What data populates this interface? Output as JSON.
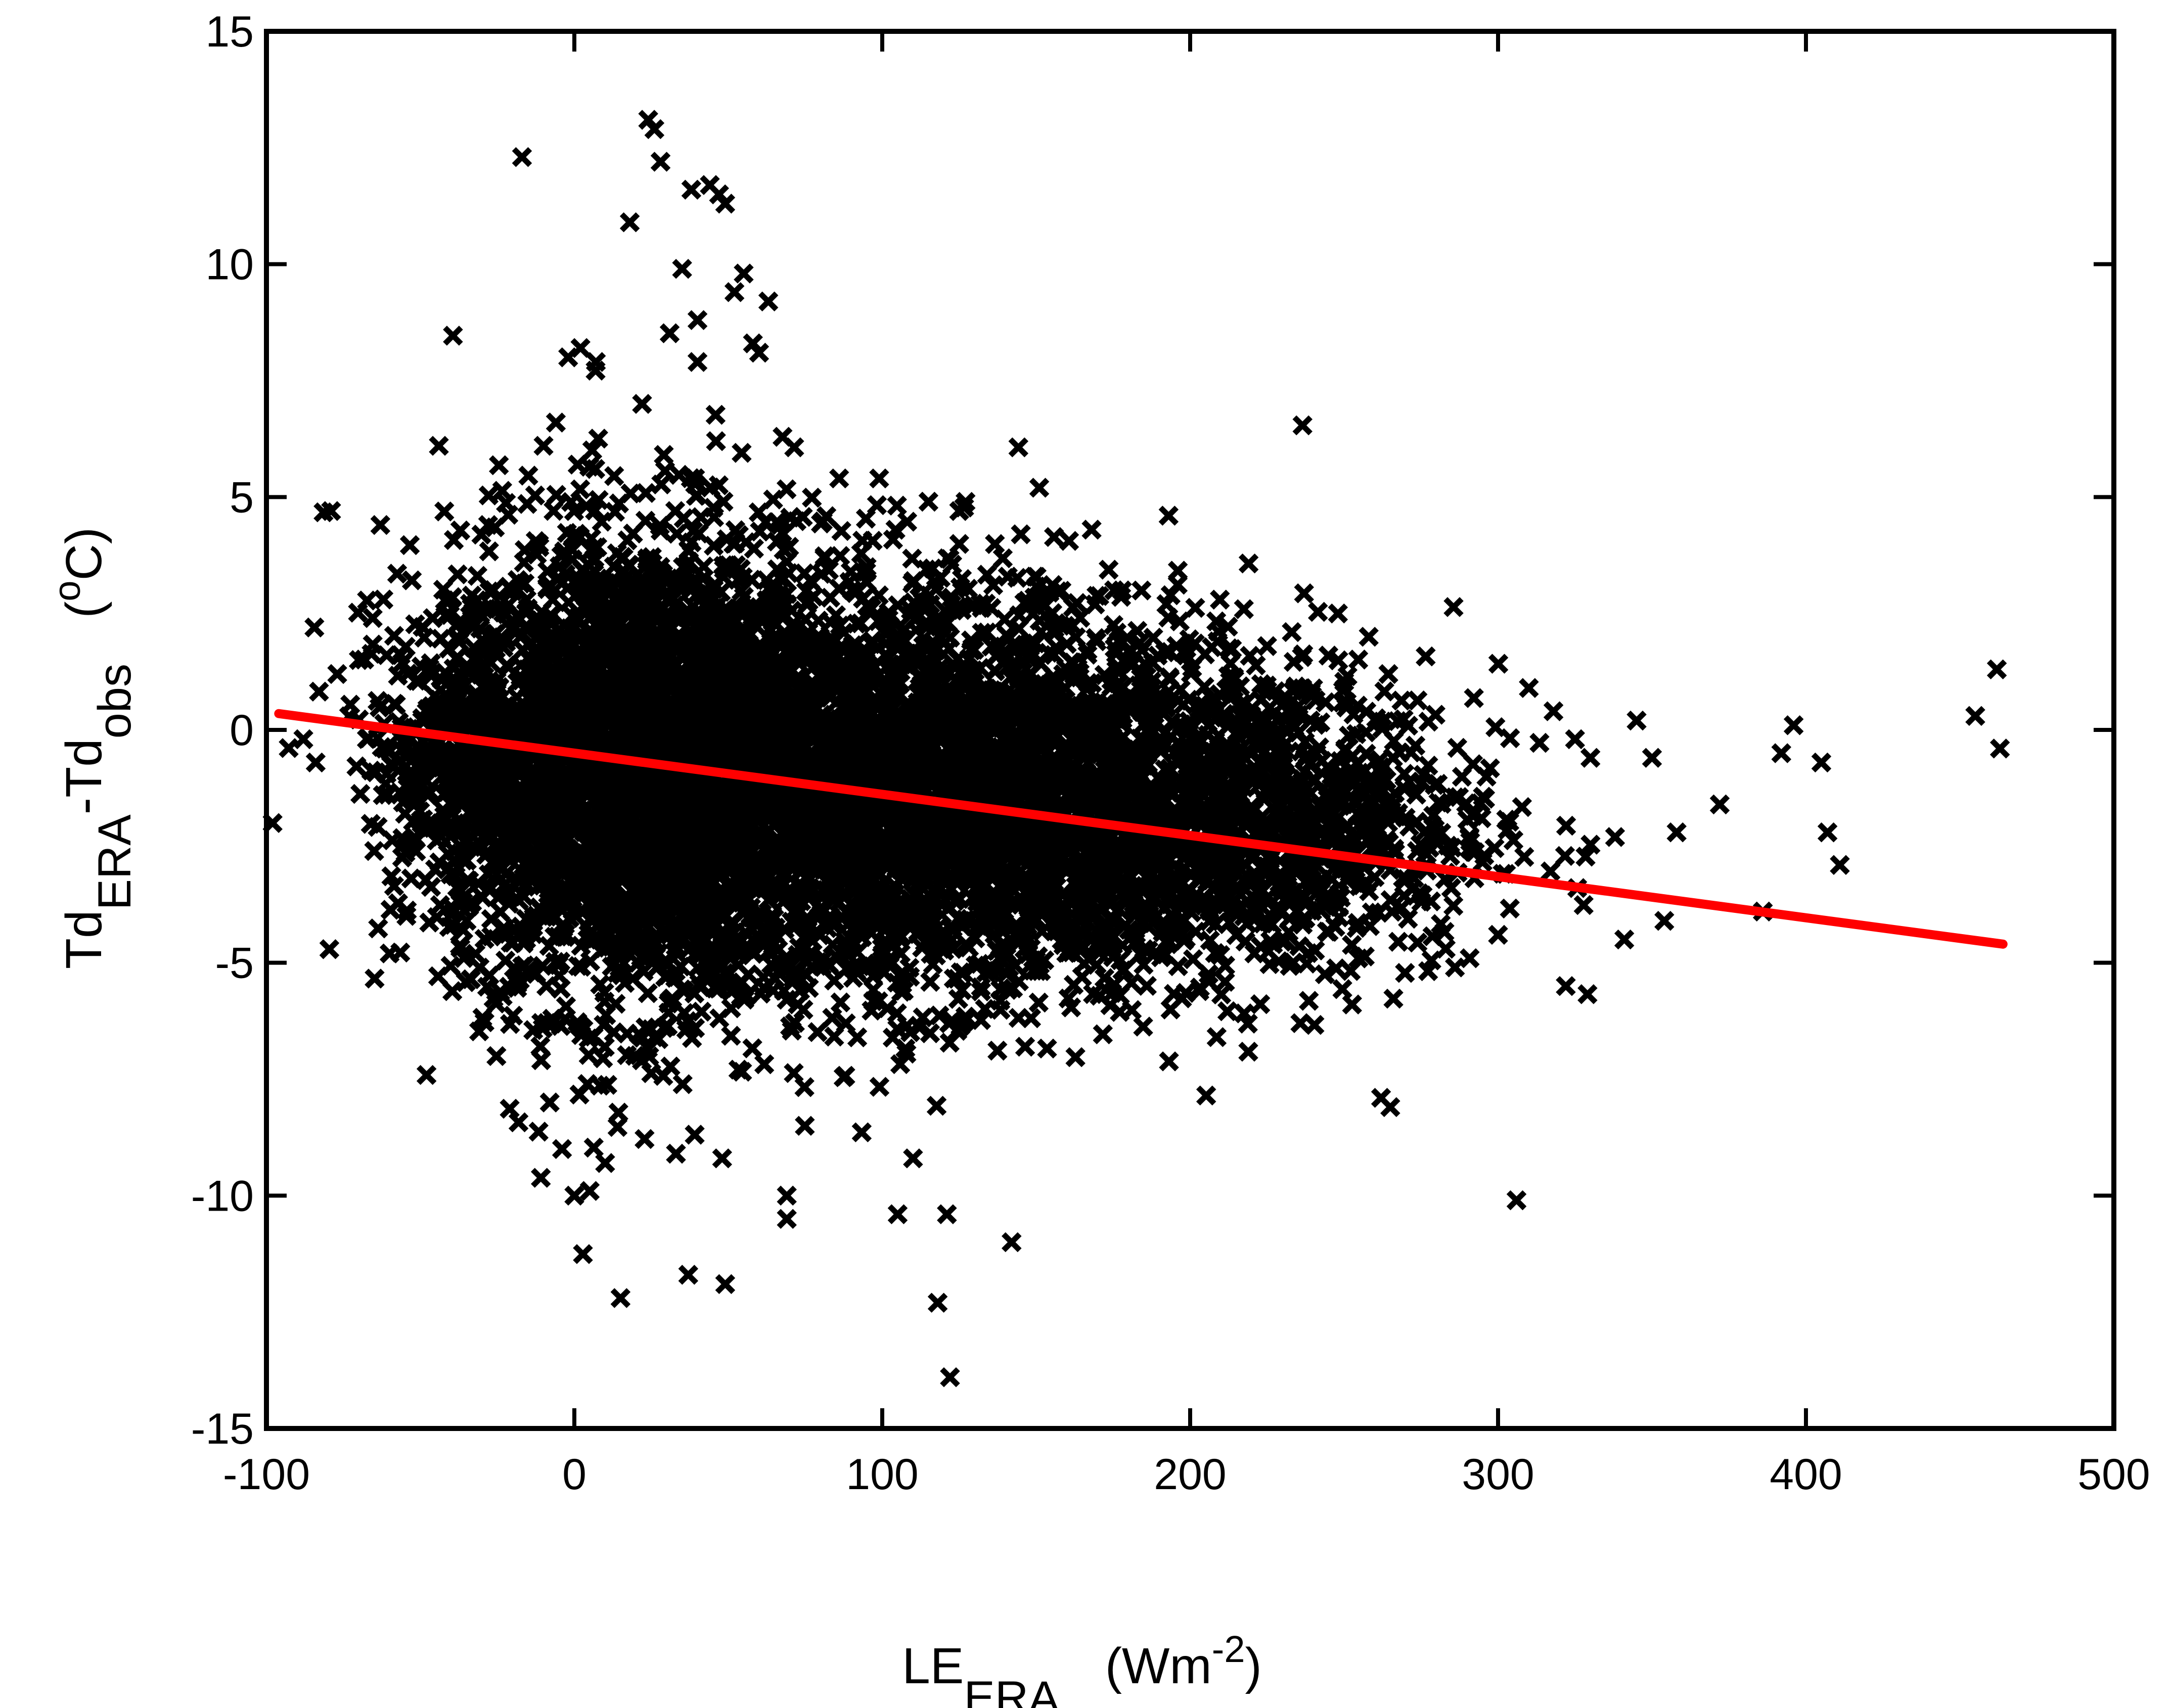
{
  "chart_data": {
    "type": "scatter",
    "xlabel": {
      "main": "LE",
      "sub": "ERA",
      "unit_open": "(Wm",
      "unit_sup": "-2",
      "unit_close": ")"
    },
    "ylabel": {
      "part1": "Td",
      "sub1": "ERA",
      "part2": "-Td",
      "sub2": "obs",
      "unit_open": "(",
      "unit_sup": "o",
      "unit_close": "C)"
    },
    "xlim": [
      -100,
      500
    ],
    "ylim": [
      -15,
      15
    ],
    "xticks": [
      -100,
      0,
      100,
      200,
      300,
      400,
      500
    ],
    "yticks": [
      -15,
      -10,
      -5,
      0,
      5,
      10,
      15
    ],
    "grid": false,
    "marker": "x",
    "marker_color": "#000000",
    "fit_line": {
      "color": "#ff0000",
      "x": [
        -96,
        464
      ],
      "y": [
        0.35,
        -4.6
      ]
    },
    "dense_cloud": {
      "description_free": true,
      "centers": [
        {
          "x": 20,
          "y": -0.8,
          "sx": 30,
          "sy": 2.6,
          "n": 2600
        },
        {
          "x": 90,
          "y": -1.2,
          "sx": 45,
          "sy": 2.2,
          "n": 2600
        },
        {
          "x": 160,
          "y": -1.6,
          "sx": 40,
          "sy": 1.9,
          "n": 1500
        },
        {
          "x": 230,
          "y": -2.0,
          "sx": 35,
          "sy": 1.7,
          "n": 700
        },
        {
          "x": -30,
          "y": -0.6,
          "sx": 18,
          "sy": 1.6,
          "n": 500
        }
      ]
    },
    "points": [
      {
        "x": -98,
        "y": -2.0
      },
      {
        "x": -88,
        "y": -0.2
      },
      {
        "x": -84,
        "y": -0.7
      },
      {
        "x": -79,
        "y": 4.7
      },
      {
        "x": -77,
        "y": 1.2
      },
      {
        "x": -70,
        "y": 1.5
      },
      {
        "x": -65,
        "y": -2.6
      },
      {
        "x": -63,
        "y": 4.4
      },
      {
        "x": -62,
        "y": 2.8
      },
      {
        "x": -60,
        "y": -4.8
      },
      {
        "x": -55,
        "y": -1.8
      },
      {
        "x": -46,
        "y": 2.4
      },
      {
        "x": -44,
        "y": 6.1
      },
      {
        "x": -40,
        "y": -3.8
      },
      {
        "x": -35,
        "y": -4.1
      },
      {
        "x": -28,
        "y": 4.4
      },
      {
        "x": -17,
        "y": 12.3
      },
      {
        "x": -10,
        "y": 6.1
      },
      {
        "x": -6,
        "y": 6.6
      },
      {
        "x": -2,
        "y": 8.0
      },
      {
        "x": 2,
        "y": 8.2
      },
      {
        "x": 7,
        "y": 7.9
      },
      {
        "x": -8,
        "y": -8.0
      },
      {
        "x": -4,
        "y": -9.0
      },
      {
        "x": 0,
        "y": -10.0
      },
      {
        "x": 5,
        "y": -9.9
      },
      {
        "x": 10,
        "y": -9.3
      },
      {
        "x": 15,
        "y": -12.2
      },
      {
        "x": 18,
        "y": 10.9
      },
      {
        "x": 22,
        "y": 7.0
      },
      {
        "x": 24,
        "y": 13.1
      },
      {
        "x": 26,
        "y": 12.9
      },
      {
        "x": 28,
        "y": 12.2
      },
      {
        "x": 35,
        "y": 9.9
      },
      {
        "x": 38,
        "y": 11.6
      },
      {
        "x": 40,
        "y": 8.8
      },
      {
        "x": 44,
        "y": 11.7
      },
      {
        "x": 47,
        "y": 11.5
      },
      {
        "x": 49,
        "y": 11.3
      },
      {
        "x": 52,
        "y": 9.4
      },
      {
        "x": 55,
        "y": 9.8
      },
      {
        "x": 58,
        "y": 8.3
      },
      {
        "x": 60,
        "y": 8.1
      },
      {
        "x": 63,
        "y": 9.2
      },
      {
        "x": 40,
        "y": 7.9
      },
      {
        "x": 46,
        "y": 6.2
      },
      {
        "x": 37,
        "y": -11.7
      },
      {
        "x": 49,
        "y": -11.9
      },
      {
        "x": 33,
        "y": -9.1
      },
      {
        "x": 48,
        "y": -9.2
      },
      {
        "x": 69,
        "y": -10.0
      },
      {
        "x": 69,
        "y": -10.5
      },
      {
        "x": 86,
        "y": 5.4
      },
      {
        "x": 99,
        "y": 5.4
      },
      {
        "x": 110,
        "y": -9.2
      },
      {
        "x": 105,
        "y": -10.4
      },
      {
        "x": 118,
        "y": -12.3
      },
      {
        "x": 121,
        "y": -10.4
      },
      {
        "x": 122,
        "y": -13.9
      },
      {
        "x": 142,
        "y": -11.0
      },
      {
        "x": 115,
        "y": 4.9
      },
      {
        "x": 125,
        "y": 4.7
      },
      {
        "x": 145,
        "y": 4.2
      },
      {
        "x": 151,
        "y": 5.2
      },
      {
        "x": 168,
        "y": 4.3
      },
      {
        "x": 193,
        "y": 4.6
      },
      {
        "x": 225,
        "y": 1.8
      },
      {
        "x": 233,
        "y": 2.1
      },
      {
        "x": 248,
        "y": 2.5
      },
      {
        "x": 258,
        "y": 2.0
      },
      {
        "x": 265,
        "y": -8.1
      },
      {
        "x": 262,
        "y": -7.9
      },
      {
        "x": 283,
        "y": -4.7
      },
      {
        "x": 286,
        "y": -5.1
      },
      {
        "x": 300,
        "y": -4.4
      },
      {
        "x": 306,
        "y": -10.1
      },
      {
        "x": 322,
        "y": -5.5
      },
      {
        "x": 310,
        "y": 0.9
      },
      {
        "x": 318,
        "y": 0.4
      },
      {
        "x": 325,
        "y": -0.2
      },
      {
        "x": 330,
        "y": -0.6
      },
      {
        "x": 338,
        "y": -2.3
      },
      {
        "x": 341,
        "y": -4.5
      },
      {
        "x": 345,
        "y": 0.2
      },
      {
        "x": 350,
        "y": -0.6
      },
      {
        "x": 354,
        "y": -4.1
      },
      {
        "x": 358,
        "y": -2.2
      },
      {
        "x": 372,
        "y": -1.6
      },
      {
        "x": 386,
        "y": -3.9
      },
      {
        "x": 392,
        "y": -0.5
      },
      {
        "x": 396,
        "y": 0.1
      },
      {
        "x": 405,
        "y": -0.7
      },
      {
        "x": 407,
        "y": -2.2
      },
      {
        "x": 411,
        "y": -2.9
      },
      {
        "x": 455,
        "y": 0.3
      },
      {
        "x": 462,
        "y": 1.3
      },
      {
        "x": 463,
        "y": -0.4
      }
    ]
  }
}
